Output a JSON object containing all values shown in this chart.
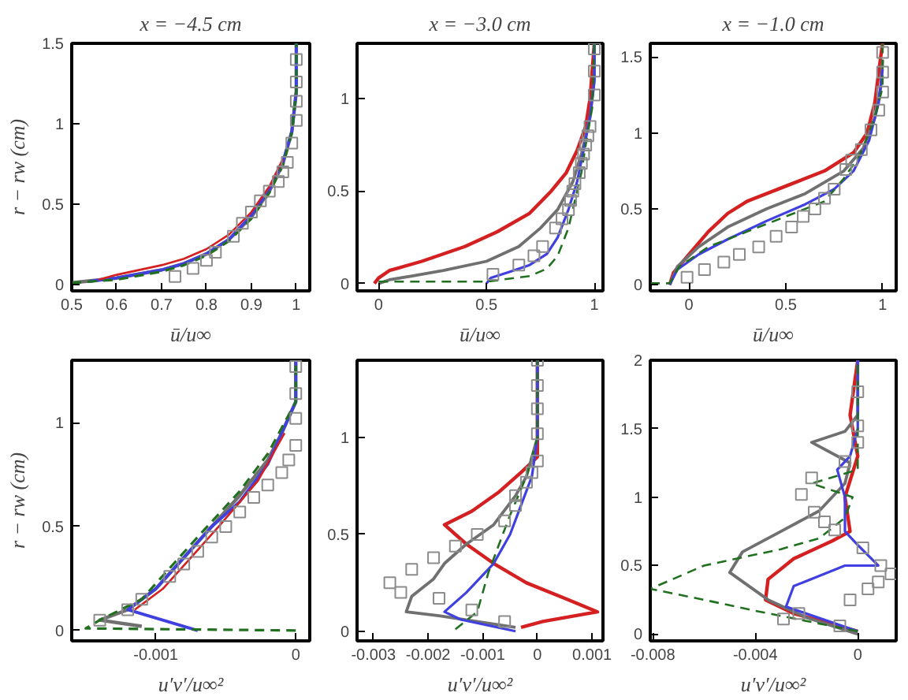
{
  "chart_data": [
    {
      "type": "line",
      "title": "x = −4.5 cm",
      "xlabel": "ū/u∞",
      "ylabel": "r − rw (cm)",
      "xlim": [
        0.5,
        1.03
      ],
      "ylim": [
        -0.04,
        1.5
      ],
      "xticks": [
        0.5,
        0.6,
        0.7,
        0.8,
        0.9,
        1
      ],
      "yticks": [
        0,
        0.5,
        1,
        1.5
      ],
      "series": [
        {
          "color": "#707070",
          "line_style": "solid",
          "x": [
            0.5,
            0.6,
            0.7,
            0.75,
            0.8,
            0.85,
            0.9,
            0.94,
            0.97,
            0.99,
            1.0,
            1.0
          ],
          "values": [
            0.01,
            0.04,
            0.09,
            0.13,
            0.19,
            0.28,
            0.42,
            0.58,
            0.75,
            0.95,
            1.2,
            1.5
          ]
        },
        {
          "color": "#4040e0",
          "line_style": "solid",
          "x": [
            0.54,
            0.6,
            0.7,
            0.75,
            0.8,
            0.85,
            0.9,
            0.94,
            0.97,
            0.99,
            1.0,
            1.0
          ],
          "values": [
            0.02,
            0.04,
            0.09,
            0.13,
            0.19,
            0.28,
            0.43,
            0.59,
            0.76,
            0.95,
            1.2,
            1.5
          ]
        },
        {
          "color": "#207020",
          "line_style": "dashed",
          "x": [
            0.5,
            0.6,
            0.7,
            0.75,
            0.8,
            0.85,
            0.9,
            0.94,
            0.97,
            0.99,
            1.0,
            1.0
          ],
          "values": [
            0.01,
            0.03,
            0.08,
            0.12,
            0.18,
            0.27,
            0.41,
            0.57,
            0.74,
            0.94,
            1.2,
            1.5
          ]
        },
        {
          "color": "#d42020",
          "line_style": "solid",
          "x": [
            0.56,
            0.6,
            0.7,
            0.75,
            0.8,
            0.85,
            0.9,
            0.94,
            0.97
          ],
          "values": [
            0.03,
            0.06,
            0.12,
            0.16,
            0.22,
            0.31,
            0.45,
            0.61,
            0.78
          ]
        },
        {
          "type": "scatter",
          "marker": "square",
          "color": "#8c8c8c",
          "x": [
            0.73,
            0.77,
            0.8,
            0.82,
            0.86,
            0.88,
            0.9,
            0.92,
            0.94,
            0.96,
            0.97,
            0.98,
            0.99,
            1.0,
            1.0,
            1.0,
            1.0
          ],
          "values": [
            0.05,
            0.1,
            0.15,
            0.2,
            0.3,
            0.38,
            0.45,
            0.52,
            0.58,
            0.64,
            0.7,
            0.76,
            0.88,
            1.02,
            1.14,
            1.26,
            1.4
          ]
        }
      ]
    },
    {
      "type": "line",
      "title": "x = −3.0 cm",
      "xlabel": "ū/u∞",
      "xlim": [
        -0.1,
        1.04
      ],
      "ylim": [
        -0.04,
        1.3
      ],
      "xticks": [
        0,
        0.5,
        1
      ],
      "yticks": [
        0,
        0.5,
        1
      ],
      "series": [
        {
          "color": "#d42020",
          "line_style": "solid",
          "x": [
            -0.02,
            0.0,
            0.05,
            0.2,
            0.4,
            0.55,
            0.7,
            0.8,
            0.87,
            0.92,
            0.96,
            0.98,
            1.0
          ],
          "values": [
            0.0,
            0.03,
            0.07,
            0.12,
            0.2,
            0.28,
            0.38,
            0.5,
            0.6,
            0.72,
            0.85,
            1.0,
            1.3
          ]
        },
        {
          "color": "#707070",
          "line_style": "solid",
          "x": [
            0.0,
            0.05,
            0.15,
            0.3,
            0.5,
            0.65,
            0.75,
            0.83,
            0.9,
            0.94,
            0.98,
            1.0,
            1.0
          ],
          "values": [
            0.0,
            0.02,
            0.04,
            0.07,
            0.12,
            0.2,
            0.3,
            0.4,
            0.55,
            0.7,
            0.9,
            1.1,
            1.3
          ]
        },
        {
          "color": "#4040e0",
          "line_style": "solid",
          "x": [
            0.5,
            0.52,
            0.6,
            0.7,
            0.78,
            0.83,
            0.88,
            0.92,
            0.95,
            0.98,
            1.0,
            1.0
          ],
          "values": [
            0.0,
            0.03,
            0.06,
            0.1,
            0.16,
            0.25,
            0.4,
            0.55,
            0.72,
            0.9,
            1.1,
            1.3
          ]
        },
        {
          "color": "#207020",
          "line_style": "dashed",
          "x": [
            0.0,
            0.5,
            0.7,
            0.78,
            0.83,
            0.88,
            0.91,
            0.94,
            0.96,
            0.99,
            1.0
          ],
          "values": [
            0.01,
            0.01,
            0.04,
            0.08,
            0.15,
            0.3,
            0.45,
            0.6,
            0.75,
            0.95,
            1.3
          ]
        },
        {
          "type": "scatter",
          "marker": "square",
          "color": "#8c8c8c",
          "x": [
            0.53,
            0.65,
            0.72,
            0.76,
            0.82,
            0.85,
            0.88,
            0.89,
            0.9,
            0.91,
            0.93,
            0.94,
            0.95,
            0.96,
            0.97,
            0.98,
            1.0,
            1.0,
            1.0
          ],
          "values": [
            0.05,
            0.1,
            0.15,
            0.2,
            0.3,
            0.35,
            0.4,
            0.45,
            0.5,
            0.54,
            0.6,
            0.65,
            0.7,
            0.75,
            0.8,
            0.85,
            1.02,
            1.15,
            1.27
          ]
        }
      ]
    },
    {
      "type": "line",
      "title": "x = −1.0 cm",
      "xlabel": "ū/u∞",
      "xlim": [
        -0.2,
        1.07
      ],
      "ylim": [
        -0.04,
        1.59
      ],
      "xticks": [
        0,
        0.5,
        1
      ],
      "yticks": [
        0,
        0.5,
        1,
        1.5
      ],
      "series": [
        {
          "color": "#d42020",
          "line_style": "solid",
          "x": [
            -0.1,
            -0.08,
            0.0,
            0.1,
            0.2,
            0.3,
            0.5,
            0.7,
            0.85,
            0.92,
            0.96,
            0.99,
            1.0
          ],
          "values": [
            0.0,
            0.08,
            0.2,
            0.35,
            0.47,
            0.55,
            0.65,
            0.75,
            0.87,
            1.0,
            1.2,
            1.5,
            1.59
          ]
        },
        {
          "color": "#707070",
          "line_style": "solid",
          "x": [
            -0.1,
            -0.06,
            0.05,
            0.2,
            0.4,
            0.6,
            0.8,
            0.9,
            0.96,
            0.99,
            1.0
          ],
          "values": [
            0.0,
            0.12,
            0.25,
            0.38,
            0.5,
            0.6,
            0.75,
            0.9,
            1.1,
            1.3,
            1.48
          ]
        },
        {
          "color": "#4040e0",
          "line_style": "solid",
          "x": [
            -0.1,
            -0.06,
            0.05,
            0.2,
            0.4,
            0.6,
            0.75,
            0.85,
            0.93,
            0.98,
            1.0
          ],
          "values": [
            0.0,
            0.1,
            0.2,
            0.3,
            0.42,
            0.53,
            0.63,
            0.75,
            0.95,
            1.2,
            1.42
          ]
        },
        {
          "color": "#207020",
          "line_style": "dashed",
          "x": [
            -0.2,
            -0.1,
            -0.05,
            0.1,
            0.3,
            0.5,
            0.7,
            0.8,
            0.88,
            0.93,
            0.97,
            1.0,
            1.0
          ],
          "values": [
            0.01,
            0.01,
            0.12,
            0.25,
            0.35,
            0.45,
            0.55,
            0.7,
            0.85,
            1.0,
            1.15,
            1.3,
            1.59
          ]
        },
        {
          "type": "scatter",
          "marker": "square",
          "color": "#8c8c8c",
          "x": [
            -0.01,
            0.08,
            0.18,
            0.26,
            0.36,
            0.45,
            0.53,
            0.59,
            0.65,
            0.7,
            0.75,
            0.81,
            0.84,
            0.89,
            0.94,
            0.98,
            1.0,
            1.0,
            1.0
          ],
          "values": [
            0.05,
            0.1,
            0.15,
            0.2,
            0.25,
            0.32,
            0.38,
            0.45,
            0.5,
            0.57,
            0.63,
            0.76,
            0.82,
            0.89,
            1.02,
            1.15,
            1.27,
            1.4,
            1.53
          ]
        }
      ]
    },
    {
      "type": "line",
      "xlabel": "u′v′/u∞²",
      "ylabel": "r − rw (cm)",
      "xlim": [
        -0.0016,
        0.0001
      ],
      "ylim": [
        -0.05,
        1.3
      ],
      "xticks": [
        -0.001,
        0
      ],
      "yticks": [
        0,
        0.5,
        1
      ],
      "series": [
        {
          "color": "#707070",
          "line_style": "solid",
          "x": [
            -0.0011,
            -0.0014,
            -0.0012,
            -0.001,
            -0.0008,
            -0.0006,
            -0.0004,
            -0.0002,
            -0.0001,
            0.0,
            0.0
          ],
          "values": [
            0.02,
            0.05,
            0.1,
            0.2,
            0.35,
            0.5,
            0.65,
            0.82,
            0.95,
            1.1,
            1.3
          ]
        },
        {
          "color": "#4040e0",
          "line_style": "solid",
          "x": [
            -0.0007,
            -0.0012,
            -0.001,
            -0.0008,
            -0.0006,
            -0.0004,
            -0.0002,
            -0.0001,
            0.0,
            0.0
          ],
          "values": [
            0.0,
            0.1,
            0.2,
            0.35,
            0.5,
            0.62,
            0.8,
            0.95,
            1.1,
            1.3
          ]
        },
        {
          "color": "#207020",
          "line_style": "dashed",
          "x": [
            0.0,
            -0.0015,
            -0.0014,
            -0.0011,
            -0.0009,
            -0.0007,
            -0.0004,
            -0.0002,
            0.0,
            0.0
          ],
          "values": [
            0.0,
            0.01,
            0.05,
            0.15,
            0.3,
            0.45,
            0.67,
            0.85,
            1.1,
            1.3
          ]
        },
        {
          "color": "#d42020",
          "line_style": "solid",
          "x": [
            -0.00115,
            -0.00095,
            -0.00075,
            -0.00055,
            -0.00027,
            -8e-05
          ],
          "values": [
            0.1,
            0.2,
            0.35,
            0.5,
            0.72,
            0.95
          ]
        },
        {
          "type": "scatter",
          "marker": "square",
          "color": "#8c8c8c",
          "x": [
            -0.0014,
            -0.0012,
            -0.0011,
            -0.0009,
            -0.0008,
            -0.0007,
            -0.0006,
            -0.0005,
            -0.0004,
            -0.0003,
            -0.0002,
            -0.0001,
            -5e-05,
            0.0,
            0.0,
            0.0,
            0.0
          ],
          "values": [
            0.05,
            0.1,
            0.15,
            0.26,
            0.32,
            0.38,
            0.45,
            0.5,
            0.57,
            0.64,
            0.7,
            0.76,
            0.82,
            0.89,
            1.02,
            1.14,
            1.27
          ]
        }
      ]
    },
    {
      "type": "line",
      "xlabel": "u′v′/u∞²",
      "xlim": [
        -0.0033,
        0.0012
      ],
      "ylim": [
        -0.05,
        1.4
      ],
      "xticks": [
        -0.003,
        -0.002,
        -0.001,
        0,
        0.001
      ],
      "yticks": [
        0,
        0.5,
        1
      ],
      "series": [
        {
          "color": "#d42020",
          "line_style": "solid",
          "x": [
            -0.0003,
            0.0001,
            0.0011,
            0.0005,
            -0.0002,
            -0.0008,
            -0.0013,
            -0.0017,
            -0.0012,
            -0.0007,
            -0.0003,
            0.0,
            0.0,
            0.0
          ],
          "values": [
            0.02,
            0.05,
            0.1,
            0.17,
            0.25,
            0.35,
            0.45,
            0.55,
            0.62,
            0.72,
            0.82,
            0.9,
            1.1,
            1.4
          ]
        },
        {
          "color": "#707070",
          "line_style": "solid",
          "x": [
            -0.0004,
            -0.0018,
            -0.0024,
            -0.0023,
            -0.0019,
            -0.0017,
            -0.0013,
            -0.0008,
            -0.0004,
            -0.0002,
            0.0,
            0.0
          ],
          "values": [
            0.02,
            0.08,
            0.1,
            0.18,
            0.27,
            0.35,
            0.45,
            0.55,
            0.7,
            0.8,
            1.0,
            1.4
          ]
        },
        {
          "color": "#4040e0",
          "line_style": "solid",
          "x": [
            -0.0004,
            -0.0014,
            -0.0017,
            -0.0013,
            -0.0008,
            -0.0005,
            -0.0003,
            -0.0001,
            0.0,
            0.0
          ],
          "values": [
            0.0,
            0.06,
            0.1,
            0.2,
            0.35,
            0.5,
            0.65,
            0.8,
            1.0,
            1.4
          ]
        },
        {
          "color": "#207020",
          "line_style": "dashed",
          "x": [
            -0.0015,
            -0.0011,
            -0.0009,
            -0.0005,
            -0.0002,
            0.0,
            0.0
          ],
          "values": [
            0.01,
            0.1,
            0.3,
            0.6,
            0.8,
            1.0,
            1.4
          ]
        },
        {
          "type": "scatter",
          "marker": "square",
          "color": "#8c8c8c",
          "x": [
            -0.0006,
            -0.0012,
            -0.0018,
            -0.0027,
            -0.0025,
            -0.0023,
            -0.0019,
            -0.0015,
            -0.0011,
            -0.0006,
            -0.0004,
            -0.0004,
            -0.0002,
            -0.0001,
            0.0,
            0.0,
            0.0,
            0.0,
            0.0
          ],
          "values": [
            0.05,
            0.11,
            0.17,
            0.25,
            0.2,
            0.32,
            0.38,
            0.44,
            0.5,
            0.57,
            0.65,
            0.7,
            0.77,
            0.82,
            0.88,
            1.02,
            1.15,
            1.27,
            1.4
          ]
        }
      ]
    },
    {
      "type": "line",
      "xlabel": "u′v′/u∞²",
      "xlim": [
        -0.0081,
        0.0015
      ],
      "ylim": [
        -0.05,
        2
      ],
      "xticks": [
        -0.008,
        -0.004,
        0
      ],
      "yticks": [
        0,
        0.5,
        1,
        1.5,
        2
      ],
      "series": [
        {
          "color": "#d42020",
          "line_style": "solid",
          "x": [
            0.0,
            -0.0025,
            -0.0036,
            -0.0035,
            -0.0025,
            -0.001,
            -0.0003,
            -0.0005,
            0.0,
            -0.0003,
            0.0
          ],
          "values": [
            0.02,
            0.15,
            0.25,
            0.4,
            0.55,
            0.68,
            0.75,
            1.0,
            1.3,
            1.6,
            2.0
          ]
        },
        {
          "color": "#707070",
          "line_style": "solid",
          "x": [
            0.0,
            -0.002,
            -0.0035,
            -0.005,
            -0.0045,
            -0.003,
            -0.0015,
            -0.0005,
            -0.0003,
            -0.0018,
            -0.0005,
            0.0,
            0.0
          ],
          "values": [
            0.0,
            0.12,
            0.25,
            0.45,
            0.6,
            0.75,
            0.9,
            1.1,
            1.25,
            1.4,
            1.48,
            1.6,
            2.0
          ]
        },
        {
          "color": "#4040e0",
          "line_style": "solid",
          "x": [
            0.0,
            -0.0028,
            -0.0025,
            -0.0005,
            0.0008,
            0.0,
            -0.0005,
            -0.0005,
            -0.0008,
            -0.0003,
            0.0,
            0.0
          ],
          "values": [
            0.02,
            0.2,
            0.35,
            0.5,
            0.5,
            0.65,
            0.75,
            1.0,
            1.2,
            1.3,
            1.5,
            2.0
          ]
        },
        {
          "color": "#207020",
          "line_style": "dashed",
          "x": [
            0.0,
            -0.004,
            -0.006,
            -0.0081,
            -0.006,
            -0.003,
            -0.0015,
            -0.0005,
            -0.0002,
            -0.0018,
            0.0,
            0.0
          ],
          "values": [
            0.02,
            0.17,
            0.25,
            0.33,
            0.5,
            0.62,
            0.7,
            0.85,
            1.0,
            1.1,
            1.2,
            2.0
          ]
        },
        {
          "type": "scatter",
          "marker": "square",
          "color": "#8c8c8c",
          "x": [
            -0.0007,
            -0.0023,
            -0.0029,
            -0.0003,
            0.0004,
            0.0008,
            0.0013,
            0.0009,
            0.0002,
            -0.0009,
            -0.0013,
            -0.0017,
            -0.0022,
            -0.0018,
            -0.0005,
            0.0,
            0.0,
            0.0
          ],
          "values": [
            0.06,
            0.15,
            0.11,
            0.25,
            0.33,
            0.38,
            0.44,
            0.5,
            0.63,
            0.76,
            0.82,
            0.89,
            1.02,
            1.14,
            1.26,
            1.4,
            1.52,
            1.77
          ]
        }
      ]
    }
  ]
}
